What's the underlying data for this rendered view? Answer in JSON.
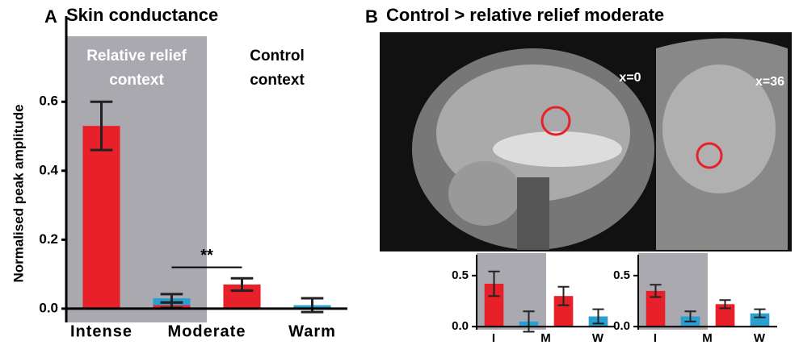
{
  "chart_data": [
    {
      "type": "bar",
      "panel_label": "A",
      "title": "Skin conductance",
      "y_label": "Normalised peak amplitude",
      "categories": [
        "Intense",
        "Moderate",
        "Warm"
      ],
      "ylim": [
        -0.04,
        0.79
      ],
      "yticks": [
        {
          "value": 0,
          "label": "0.0"
        },
        0.2,
        0.4,
        0.6
      ],
      "annotation": "**",
      "contexts": [
        {
          "label": [
            "Relative relief",
            "context"
          ],
          "shade": "#a9a9af",
          "bars": [
            {
              "category": 0,
              "value": 0.53,
              "error": 0.07,
              "color": "#e8202a"
            },
            {
              "category": 1,
              "value": 0.03,
              "error": 0.012,
              "color": "#2a9fd0"
            },
            {
              "category": 1,
              "value": 0.01,
              "error": 0.008,
              "color": "#e8202a"
            }
          ]
        },
        {
          "label": [
            "Control",
            "context"
          ],
          "bars": [
            {
              "category": 1,
              "value": 0.07,
              "error": 0.018,
              "color": "#e8202a"
            },
            {
              "category": 2,
              "value": 0.01,
              "error": 0.02,
              "color": "#2a9fd0"
            }
          ]
        }
      ]
    },
    {
      "type": "bar",
      "categories": [
        "I",
        "M",
        "W"
      ],
      "ylim": [
        -0.03,
        0.72
      ],
      "yticks": [
        {
          "value": 0,
          "label": "0.0"
        },
        0.5
      ],
      "contexts": [
        {
          "shade": "#a9a9af",
          "bars": [
            {
              "category": 0,
              "value": 0.42,
              "error": 0.12,
              "color": "#e8202a"
            },
            {
              "category": 1,
              "value": 0.05,
              "error": 0.1,
              "color": "#2a9fd0"
            }
          ]
        },
        {
          "bars": [
            {
              "category": 1,
              "value": 0.3,
              "error": 0.09,
              "color": "#e8202a"
            },
            {
              "category": 2,
              "value": 0.1,
              "error": 0.07,
              "color": "#2a9fd0"
            }
          ]
        }
      ]
    },
    {
      "type": "bar",
      "categories": [
        "I",
        "M",
        "W"
      ],
      "ylim": [
        -0.03,
        0.72
      ],
      "yticks": [
        {
          "value": 0,
          "label": "0.0"
        },
        0.5
      ],
      "contexts": [
        {
          "shade": "#a9a9af",
          "bars": [
            {
              "category": 0,
              "value": 0.35,
              "error": 0.06,
              "color": "#e8202a"
            },
            {
              "category": 1,
              "value": 0.1,
              "error": 0.05,
              "color": "#2a9fd0"
            }
          ]
        },
        {
          "bars": [
            {
              "category": 1,
              "value": 0.22,
              "error": 0.04,
              "color": "#e8202a"
            },
            {
              "category": 2,
              "value": 0.13,
              "error": 0.04,
              "color": "#2a9fd0"
            }
          ]
        }
      ]
    }
  ],
  "panel_b": {
    "label": "B",
    "title": "Control > relative relief moderate",
    "slices": [
      "x=0",
      "x=36"
    ]
  }
}
